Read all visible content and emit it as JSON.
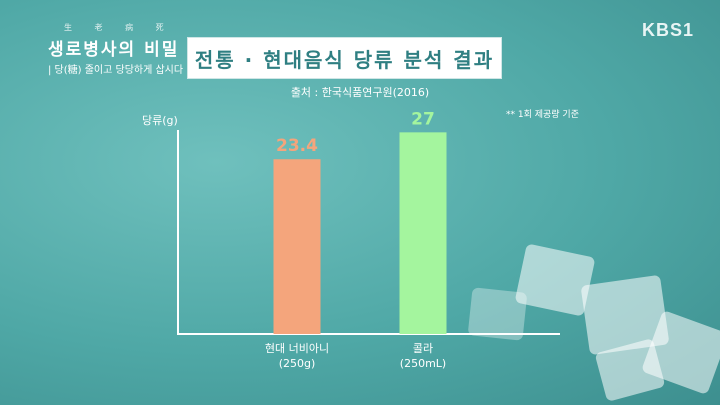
{
  "program": {
    "title": "생로병사의 비밀",
    "subtitle": "| 당(糖) 줄이고 당당하게 삽시다"
  },
  "broadcaster": "KBS1",
  "chart_data": {
    "type": "bar",
    "title": "전통 · 현대음식 당류 분석 결과",
    "source": "출처 : 한국식품연구원(2016)",
    "note": "** 1회 제공량 기준",
    "ylabel": "당류(g)",
    "categories": [
      {
        "name": "현대 너비아니",
        "sub": "(250g)"
      },
      {
        "name": "콜라",
        "sub": "(250mL)"
      }
    ],
    "values": [
      23.4,
      27
    ],
    "value_labels": [
      "23.4",
      "27"
    ],
    "colors": [
      "#f4a57c",
      "#a4f59e"
    ],
    "ylim": [
      0,
      32
    ],
    "grid": false,
    "legend": "none"
  }
}
